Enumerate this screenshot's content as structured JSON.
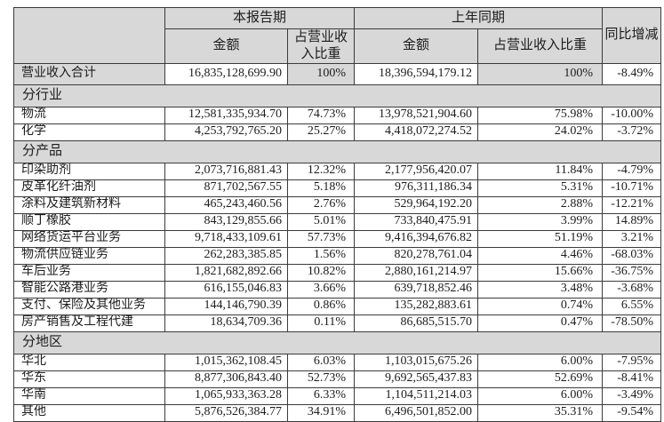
{
  "colors": {
    "header_bg": "#d8d8d8",
    "border": "#3b3b3b",
    "text": "#1c1c1c",
    "cell_bg": "#ffffff"
  },
  "table": {
    "headers": {
      "current_period": "本报告期",
      "prior_period": "上年同期",
      "yoy": "同比增减",
      "amount": "金额",
      "ratio": "占营业收入比重"
    },
    "total_row": {
      "label": "营业收入合计",
      "current_amount": "16,835,128,699.90",
      "current_ratio": "100%",
      "prior_amount": "18,396,594,179.12",
      "prior_ratio": "100%",
      "yoy": "-8.49%"
    },
    "sections": [
      {
        "title": "分行业",
        "rows": [
          {
            "label": "物流",
            "current_amount": "12,581,335,934.70",
            "current_ratio": "74.73%",
            "prior_amount": "13,978,521,904.60",
            "prior_ratio": "75.98%",
            "yoy": "-10.00%"
          },
          {
            "label": "化学",
            "current_amount": "4,253,792,765.20",
            "current_ratio": "25.27%",
            "prior_amount": "4,418,072,274.52",
            "prior_ratio": "24.02%",
            "yoy": "-3.72%"
          }
        ]
      },
      {
        "title": "分产品",
        "rows": [
          {
            "label": "印染助剂",
            "current_amount": "2,073,716,881.43",
            "current_ratio": "12.32%",
            "prior_amount": "2,177,956,420.07",
            "prior_ratio": "11.84%",
            "yoy": "-4.79%"
          },
          {
            "label": "皮革化纤油剂",
            "current_amount": "871,702,567.55",
            "current_ratio": "5.18%",
            "prior_amount": "976,311,186.34",
            "prior_ratio": "5.31%",
            "yoy": "-10.71%"
          },
          {
            "label": "涂料及建筑新材料",
            "current_amount": "465,243,460.56",
            "current_ratio": "2.76%",
            "prior_amount": "529,964,192.20",
            "prior_ratio": "2.88%",
            "yoy": "-12.21%"
          },
          {
            "label": "顺丁橡胶",
            "current_amount": "843,129,855.66",
            "current_ratio": "5.01%",
            "prior_amount": "733,840,475.91",
            "prior_ratio": "3.99%",
            "yoy": "14.89%"
          },
          {
            "label": "网络货运平台业务",
            "current_amount": "9,718,433,109.61",
            "current_ratio": "57.73%",
            "prior_amount": "9,416,394,676.82",
            "prior_ratio": "51.19%",
            "yoy": "3.21%"
          },
          {
            "label": "物流供应链业务",
            "current_amount": "262,283,385.85",
            "current_ratio": "1.56%",
            "prior_amount": "820,278,761.04",
            "prior_ratio": "4.46%",
            "yoy": "-68.03%"
          },
          {
            "label": "车后业务",
            "current_amount": "1,821,682,892.66",
            "current_ratio": "10.82%",
            "prior_amount": "2,880,161,214.97",
            "prior_ratio": "15.66%",
            "yoy": "-36.75%"
          },
          {
            "label": "智能公路港业务",
            "current_amount": "616,155,046.83",
            "current_ratio": "3.66%",
            "prior_amount": "639,718,852.46",
            "prior_ratio": "3.48%",
            "yoy": "-3.68%"
          },
          {
            "label": "支付、保险及其他业务",
            "current_amount": "144,146,790.39",
            "current_ratio": "0.86%",
            "prior_amount": "135,282,883.61",
            "prior_ratio": "0.74%",
            "yoy": "6.55%"
          },
          {
            "label": "房产销售及工程代建",
            "current_amount": "18,634,709.36",
            "current_ratio": "0.11%",
            "prior_amount": "86,685,515.70",
            "prior_ratio": "0.47%",
            "yoy": "-78.50%"
          }
        ]
      },
      {
        "title": "分地区",
        "rows": [
          {
            "label": "华北",
            "current_amount": "1,015,362,108.45",
            "current_ratio": "6.03%",
            "prior_amount": "1,103,015,675.26",
            "prior_ratio": "6.00%",
            "yoy": "-7.95%"
          },
          {
            "label": "华东",
            "current_amount": "8,877,306,843.40",
            "current_ratio": "52.73%",
            "prior_amount": "9,692,565,437.83",
            "prior_ratio": "52.69%",
            "yoy": "-8.41%"
          },
          {
            "label": "华南",
            "current_amount": "1,065,933,363.28",
            "current_ratio": "6.33%",
            "prior_amount": "1,104,511,214.03",
            "prior_ratio": "6.00%",
            "yoy": "-3.49%"
          },
          {
            "label": "其他",
            "current_amount": "5,876,526,384.77",
            "current_ratio": "34.91%",
            "prior_amount": "6,496,501,852.00",
            "prior_ratio": "35.31%",
            "yoy": "-9.54%"
          }
        ]
      }
    ]
  }
}
